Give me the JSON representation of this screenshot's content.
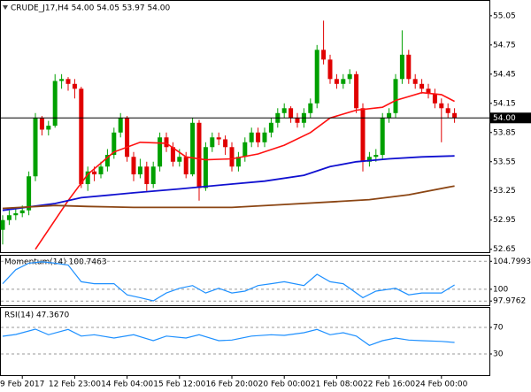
{
  "chart_data": [
    {
      "type": "candlestick",
      "title": "CRUDE_J17,H4  54.00 54.05 53.97 54.00",
      "categories": [
        null,
        null,
        null,
        "9 Feb 2017",
        null,
        null,
        null,
        null,
        null,
        null,
        null,
        "12 Feb 23:00",
        null,
        null,
        null,
        null,
        null,
        null,
        null,
        "14 Feb 04:00",
        null,
        null,
        null,
        null,
        null,
        null,
        null,
        "15 Feb 12:00",
        null,
        null,
        null,
        null,
        null,
        null,
        null,
        "16 Feb 20:00",
        null,
        null,
        null,
        null,
        null,
        null,
        null,
        "20 Feb 00:00",
        null,
        null,
        null,
        null,
        null,
        null,
        null,
        "21 Feb 08:00",
        null,
        null,
        null,
        null,
        null,
        null,
        null,
        "22 Feb 16:00",
        null,
        null,
        null,
        null,
        null,
        null,
        null,
        "24 Feb 00:00",
        null,
        null
      ],
      "open": [
        52.85,
        52.95,
        53.0,
        53.02,
        53.05,
        53.4,
        54.0,
        53.88,
        53.92,
        54.38,
        54.4,
        54.35,
        54.3,
        53.32,
        53.45,
        53.42,
        53.5,
        53.62,
        53.85,
        54.0,
        53.6,
        53.42,
        53.5,
        53.32,
        53.5,
        53.8,
        53.7,
        53.55,
        53.6,
        53.42,
        53.95,
        53.28,
        53.7,
        53.8,
        53.78,
        53.7,
        53.5,
        53.6,
        53.75,
        53.85,
        53.75,
        53.85,
        53.95,
        54.05,
        54.1,
        54.0,
        53.95,
        54.05,
        54.15,
        54.7,
        54.6,
        54.4,
        54.35,
        54.4,
        54.45,
        54.1,
        53.55,
        53.6,
        53.62,
        54.0,
        54.05,
        54.4,
        54.65,
        54.4,
        54.35,
        54.3,
        54.25,
        54.15,
        54.1,
        54.05
      ],
      "high": [
        53.0,
        53.05,
        53.08,
        53.1,
        53.45,
        54.05,
        54.02,
        53.97,
        54.45,
        54.45,
        54.42,
        54.4,
        54.32,
        53.5,
        53.5,
        53.55,
        53.68,
        53.9,
        54.05,
        54.02,
        53.65,
        53.58,
        53.55,
        53.55,
        53.85,
        53.85,
        53.75,
        53.68,
        53.65,
        54.0,
        53.98,
        53.75,
        53.85,
        53.85,
        53.82,
        53.75,
        53.65,
        53.8,
        53.9,
        53.9,
        53.9,
        54.0,
        54.1,
        54.15,
        54.12,
        54.05,
        54.1,
        54.2,
        54.75,
        55.0,
        54.65,
        54.45,
        54.45,
        54.5,
        54.48,
        54.15,
        53.65,
        53.68,
        54.05,
        54.1,
        54.45,
        54.9,
        54.7,
        54.45,
        54.4,
        54.35,
        54.3,
        54.2,
        54.15,
        54.1
      ],
      "low": [
        52.7,
        52.9,
        52.95,
        52.98,
        53.0,
        53.35,
        53.82,
        53.82,
        53.9,
        54.3,
        54.28,
        54.2,
        53.28,
        53.25,
        53.35,
        53.38,
        53.45,
        53.58,
        53.8,
        53.55,
        53.35,
        53.38,
        53.25,
        53.28,
        53.45,
        53.65,
        53.5,
        53.5,
        53.38,
        53.4,
        53.15,
        53.25,
        53.65,
        53.72,
        53.62,
        53.45,
        53.45,
        53.55,
        53.7,
        53.7,
        53.7,
        53.8,
        53.9,
        54.0,
        53.95,
        53.9,
        53.9,
        54.0,
        54.1,
        54.55,
        54.35,
        54.3,
        54.3,
        54.35,
        54.05,
        53.45,
        53.5,
        53.55,
        53.58,
        53.95,
        54.0,
        54.35,
        54.35,
        54.3,
        54.25,
        54.2,
        54.1,
        53.75,
        54.0,
        53.95
      ],
      "close": [
        52.95,
        53.0,
        53.02,
        53.05,
        53.4,
        54.0,
        53.88,
        53.92,
        54.38,
        54.4,
        54.35,
        54.3,
        53.32,
        53.45,
        53.42,
        53.5,
        53.62,
        53.85,
        54.0,
        53.6,
        53.42,
        53.5,
        53.32,
        53.5,
        53.8,
        53.7,
        53.55,
        53.6,
        53.42,
        53.95,
        53.28,
        53.7,
        53.8,
        53.78,
        53.7,
        53.5,
        53.6,
        53.75,
        53.85,
        53.75,
        53.85,
        53.95,
        54.05,
        54.1,
        54.0,
        53.95,
        54.05,
        54.15,
        54.7,
        54.6,
        54.4,
        54.35,
        54.4,
        54.45,
        54.1,
        53.55,
        53.6,
        53.62,
        54.0,
        54.05,
        54.4,
        54.65,
        54.4,
        54.35,
        54.3,
        54.25,
        54.15,
        54.1,
        54.05,
        54.0
      ],
      "bull_color": "#00a000",
      "bear_color": "#e00000",
      "ylim": [
        52.62,
        55.185
      ],
      "yticks": [
        55.05,
        54.75,
        54.45,
        54.15,
        53.85,
        53.55,
        53.25,
        52.95,
        52.65
      ],
      "current_price": {
        "value": 54,
        "label": "54.00"
      },
      "lines": [
        {
          "color": "#ff1010",
          "x": [
            5,
            8,
            10,
            13,
            17,
            21,
            25,
            28,
            31,
            35,
            39,
            43,
            47,
            50,
            54,
            58,
            60,
            62,
            64,
            67,
            69
          ],
          "values": [
            52.65,
            52.95,
            53.15,
            53.42,
            53.65,
            53.75,
            53.74,
            53.6,
            53.57,
            53.58,
            53.63,
            53.72,
            53.85,
            54.0,
            54.08,
            54.11,
            54.18,
            54.22,
            54.26,
            54.24,
            54.17
          ]
        },
        {
          "color": "#1010d0",
          "x": [
            0,
            8,
            12,
            20,
            27,
            35,
            40,
            46,
            50,
            54,
            59,
            64,
            69
          ],
          "values": [
            53.05,
            53.12,
            53.18,
            53.23,
            53.27,
            53.32,
            53.35,
            53.41,
            53.5,
            53.55,
            53.58,
            53.6,
            53.61
          ]
        },
        {
          "color": "#8b4513",
          "x": [
            0,
            8,
            13,
            20,
            27,
            35,
            43,
            51,
            56,
            62,
            69
          ],
          "values": [
            53.07,
            53.1,
            53.09,
            53.08,
            53.08,
            53.08,
            53.11,
            53.14,
            53.16,
            53.21,
            53.3
          ]
        }
      ]
    },
    {
      "type": "line",
      "title": "Momentum(14) 100.7463",
      "series": [
        {
          "color": "#1e90ff",
          "x": [
            0,
            2,
            4,
            6,
            8,
            10,
            12,
            14,
            17,
            19,
            21,
            23,
            25,
            27,
            29,
            31,
            33,
            35,
            37,
            39,
            41,
            43,
            46,
            48,
            50,
            52,
            55,
            57,
            60,
            62,
            64,
            67,
            69
          ],
          "values": [
            100.96,
            103.36,
            104.48,
            104.7,
            104.48,
            104.16,
            101.28,
            100.96,
            100.96,
            99.04,
            98.56,
            98.0,
            99.36,
            100.16,
            100.64,
            99.36,
            100.16,
            99.36,
            99.68,
            100.64,
            100.96,
            101.28,
            100.64,
            102.56,
            101.28,
            100.96,
            98.56,
            99.68,
            100.16,
            99.04,
            99.36,
            99.36,
            100.7463
          ]
        }
      ],
      "ylim": [
        97.4,
        105.6
      ],
      "yticks": [
        104.7993,
        100,
        97.9762
      ]
    },
    {
      "type": "line",
      "title": "RSI(14) 47.3670",
      "series": [
        {
          "color": "#1e90ff",
          "x": [
            0,
            2,
            5,
            7,
            10,
            12,
            14,
            17,
            20,
            23,
            25,
            28,
            30,
            33,
            35,
            38,
            41,
            43,
            46,
            48,
            50,
            52,
            54,
            56,
            58,
            60,
            62,
            64,
            67,
            69
          ],
          "values": [
            56.7,
            59.3,
            67.3,
            59,
            67,
            57,
            59,
            54,
            59,
            50,
            57,
            54,
            59,
            50,
            51,
            57,
            59,
            58,
            62,
            67,
            59,
            62,
            57,
            43,
            50,
            54,
            51,
            50,
            49,
            47.367
          ]
        }
      ],
      "ylim": [
        0,
        100
      ],
      "yticks": [
        70,
        30
      ]
    }
  ]
}
